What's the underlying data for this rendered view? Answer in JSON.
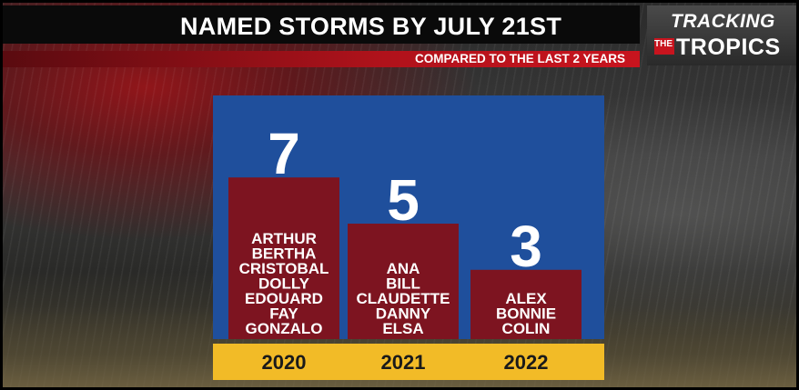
{
  "header": {
    "title": "NAMED STORMS BY JULY 21ST",
    "subtitle": "COMPARED TO THE LAST 2 YEARS"
  },
  "logo": {
    "line1": "TRACKING",
    "the": "THE",
    "line2": "TROPICS"
  },
  "colors": {
    "panel": "#1f4f9c",
    "bar": "#7d1420",
    "year_band": "#f2bb27",
    "title_bar": "#0a0a0a",
    "red_band": "#c8141e"
  },
  "chart_data": {
    "type": "bar",
    "title": "NAMED STORMS BY JULY 21ST",
    "subtitle": "COMPARED TO THE LAST 2 YEARS",
    "categories": [
      "2020",
      "2021",
      "2022"
    ],
    "values": [
      7,
      5,
      3
    ],
    "storm_names": [
      [
        "ARTHUR",
        "BERTHA",
        "CRISTOBAL",
        "DOLLY",
        "EDOUARD",
        "FAY",
        "GONZALO"
      ],
      [
        "ANA",
        "BILL",
        "CLAUDETTE",
        "DANNY",
        "ELSA"
      ],
      [
        "ALEX",
        "BONNIE",
        "COLIN"
      ]
    ],
    "ylim": [
      0,
      7
    ],
    "xlabel": "",
    "ylabel": "",
    "grid": false,
    "legend": "none"
  }
}
